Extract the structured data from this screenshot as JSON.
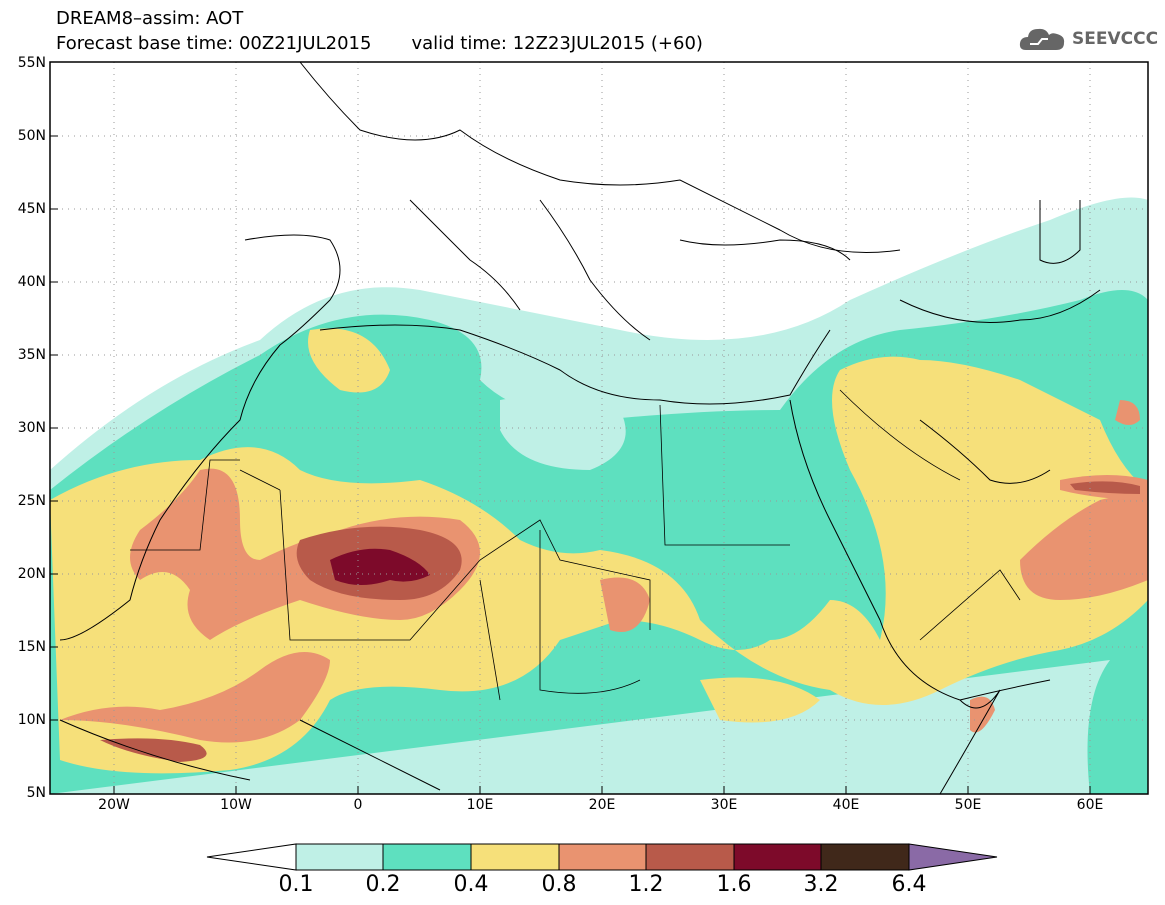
{
  "header": {
    "title_line1": "DREAM8–assim: AOT",
    "base_time": "Forecast base time: 00Z21JUL2015",
    "valid_time": "valid time: 12Z23JUL2015 (+60)",
    "logo_text": "SEEVCCC",
    "logo_icon": "cloud-icon"
  },
  "axes": {
    "lat_labels": [
      "55N",
      "50N",
      "45N",
      "40N",
      "35N",
      "30N",
      "25N",
      "20N",
      "15N",
      "10N",
      "5N"
    ],
    "lon_labels": [
      "20W",
      "10W",
      "0",
      "10E",
      "20E",
      "30E",
      "40E",
      "50E",
      "60E"
    ]
  },
  "colorbar": {
    "labels": [
      "0.1",
      "0.2",
      "0.4",
      "0.8",
      "1.2",
      "1.6",
      "3.2",
      "6.4"
    ],
    "colors": [
      "#ffffff",
      "#bff0e6",
      "#5ee0bf",
      "#f6e07a",
      "#e99370",
      "#b85a4a",
      "#7d0a2a",
      "#40281a",
      "#8a6aa6"
    ]
  },
  "colors": {
    "c1": "#bff0e6",
    "c2": "#5ee0bf",
    "c3": "#f6e07a",
    "c4": "#e99370",
    "c5": "#b85a4a",
    "c6": "#7d0a2a"
  }
}
